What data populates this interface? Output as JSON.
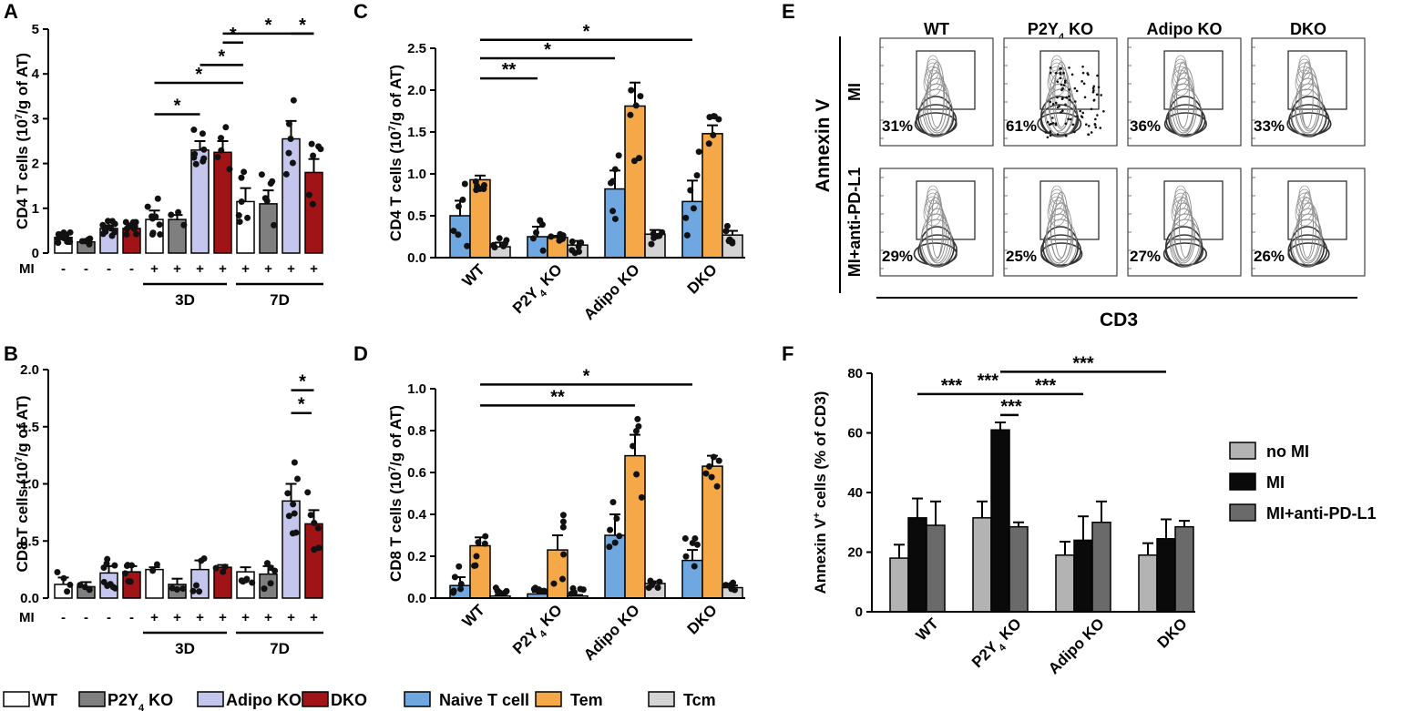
{
  "colors": {
    "WT": "#ffffff",
    "P2Y4 KO": "#7f7f7f",
    "Adipo KO": "#c5c6ee",
    "DKO": "#a01418",
    "Naive": "#6fa8e0",
    "Tem": "#f5a848",
    "Tcm": "#d4d4d4",
    "noMI": "#b3b3b3",
    "MI": "#0a0a0a",
    "MIPD": "#6a6a6a",
    "dots": "#111111"
  },
  "panels": {
    "A": "A",
    "B": "B",
    "C": "C",
    "D": "D",
    "E": "E",
    "F": "F"
  },
  "legend_AB": [
    "WT",
    "P2Y4 KO",
    "Adipo KO",
    "DKO"
  ],
  "legend_CD": [
    "Naive T cell",
    "Tem",
    "Tcm"
  ],
  "legend_F": [
    "no MI",
    "MI",
    "MI+anti-PD-L1"
  ],
  "chart_data": [
    {
      "id": "A",
      "type": "bar",
      "ylabel": "CD4 T cells (10^7/g of AT)",
      "ylim": [
        0,
        5
      ],
      "yticks": [
        "0",
        "1",
        "2",
        "3",
        "4",
        "5"
      ],
      "mi_label": "MI",
      "mi_signs": [
        "-",
        "-",
        "-",
        "-",
        "+",
        "+",
        "+",
        "+",
        "+",
        "+",
        "+",
        "+"
      ],
      "groups": [
        "3D",
        "7D"
      ],
      "bars": [
        {
          "genotype": "WT",
          "mi": "-",
          "value": 0.35,
          "err": 0.05
        },
        {
          "genotype": "P2Y4 KO",
          "mi": "-",
          "value": 0.25,
          "err": 0.03
        },
        {
          "genotype": "Adipo KO",
          "mi": "-",
          "value": 0.55,
          "err": 0.07
        },
        {
          "genotype": "DKO",
          "mi": "-",
          "value": 0.55,
          "err": 0.06
        },
        {
          "genotype": "WT",
          "mi": "+ 3D",
          "value": 0.75,
          "err": 0.2
        },
        {
          "genotype": "P2Y4 KO",
          "mi": "+ 3D",
          "value": 0.75,
          "err": 0.1
        },
        {
          "genotype": "Adipo KO",
          "mi": "+ 3D",
          "value": 2.3,
          "err": 0.2
        },
        {
          "genotype": "DKO",
          "mi": "+ 3D",
          "value": 2.25,
          "err": 0.25
        },
        {
          "genotype": "WT",
          "mi": "+ 7D",
          "value": 1.15,
          "err": 0.3
        },
        {
          "genotype": "P2Y4 KO",
          "mi": "+ 7D",
          "value": 1.1,
          "err": 0.3
        },
        {
          "genotype": "Adipo KO",
          "mi": "+ 7D",
          "value": 2.55,
          "err": 0.4
        },
        {
          "genotype": "DKO",
          "mi": "+ 7D",
          "value": 1.8,
          "err": 0.3
        }
      ],
      "significance": [
        "*",
        "*",
        "*",
        "*",
        "*",
        "*"
      ]
    },
    {
      "id": "B",
      "type": "bar",
      "ylabel": "CD8 T cells (10^7/g of AT)",
      "ylim": [
        0,
        2
      ],
      "yticks": [
        "0.0",
        "0.5",
        "1.0",
        "1.5",
        "2.0"
      ],
      "mi_label": "MI",
      "mi_signs": [
        "-",
        "-",
        "-",
        "-",
        "+",
        "+",
        "+",
        "+",
        "+",
        "+",
        "+",
        "+"
      ],
      "groups": [
        "3D",
        "7D"
      ],
      "bars": [
        {
          "genotype": "WT",
          "mi": "-",
          "value": 0.12,
          "err": 0.06
        },
        {
          "genotype": "P2Y4 KO",
          "mi": "-",
          "value": 0.1,
          "err": 0.04
        },
        {
          "genotype": "Adipo KO",
          "mi": "-",
          "value": 0.22,
          "err": 0.06
        },
        {
          "genotype": "DKO",
          "mi": "-",
          "value": 0.23,
          "err": 0.05
        },
        {
          "genotype": "WT",
          "mi": "+ 3D",
          "value": 0.25,
          "err": 0.02
        },
        {
          "genotype": "P2Y4 KO",
          "mi": "+ 3D",
          "value": 0.12,
          "err": 0.05
        },
        {
          "genotype": "Adipo KO",
          "mi": "+ 3D",
          "value": 0.25,
          "err": 0.08
        },
        {
          "genotype": "DKO",
          "mi": "+ 3D",
          "value": 0.27,
          "err": 0.02
        },
        {
          "genotype": "WT",
          "mi": "+ 7D",
          "value": 0.23,
          "err": 0.04
        },
        {
          "genotype": "P2Y4 KO",
          "mi": "+ 7D",
          "value": 0.21,
          "err": 0.07
        },
        {
          "genotype": "Adipo KO",
          "mi": "+ 7D",
          "value": 0.85,
          "err": 0.15
        },
        {
          "genotype": "DKO",
          "mi": "+ 7D",
          "value": 0.65,
          "err": 0.12
        }
      ],
      "significance": [
        "*",
        "*"
      ]
    },
    {
      "id": "C",
      "type": "bar",
      "ylabel": "CD4 T cells (10^7/g of AT)",
      "ylim": [
        0,
        2.5
      ],
      "yticks": [
        "0.0",
        "0.5",
        "1.0",
        "1.5",
        "2.0",
        "2.5"
      ],
      "categories": [
        "WT",
        "P2Y4 KO",
        "Adipo KO",
        "DKO"
      ],
      "series": [
        {
          "name": "Naive T cell",
          "values": [
            0.5,
            0.25,
            0.82,
            0.67
          ],
          "err": [
            0.18,
            0.12,
            0.22,
            0.25
          ]
        },
        {
          "name": "Tem",
          "values": [
            0.93,
            0.24,
            1.81,
            1.48
          ],
          "err": [
            0.05,
            0.02,
            0.28,
            0.1
          ]
        },
        {
          "name": "Tcm",
          "values": [
            0.13,
            0.15,
            0.28,
            0.27
          ],
          "err": [
            0.05,
            0.05,
            0.05,
            0.05
          ]
        }
      ],
      "significance": [
        "*",
        "*",
        "**"
      ]
    },
    {
      "id": "D",
      "type": "bar",
      "ylabel": "CD8 T cells (10^7/g of AT)",
      "ylim": [
        0,
        1
      ],
      "yticks": [
        "0.0",
        "0.2",
        "0.4",
        "0.6",
        "0.8",
        "1.0"
      ],
      "categories": [
        "WT",
        "P2Y4 KO",
        "Adipo KO",
        "DKO"
      ],
      "series": [
        {
          "name": "Naive T cell",
          "values": [
            0.06,
            0.02,
            0.3,
            0.18
          ],
          "err": [
            0.04,
            0.01,
            0.1,
            0.05
          ]
        },
        {
          "name": "Tem",
          "values": [
            0.25,
            0.23,
            0.68,
            0.63
          ],
          "err": [
            0.04,
            0.07,
            0.1,
            0.05
          ]
        },
        {
          "name": "Tcm",
          "values": [
            0.01,
            0.01,
            0.07,
            0.05
          ],
          "err": [
            0.005,
            0.005,
            0.01,
            0.01
          ]
        }
      ],
      "significance": [
        "*",
        "**"
      ]
    },
    {
      "id": "F",
      "type": "bar",
      "ylabel": "Annexin V+ cells (% of CD3)",
      "ylim": [
        0,
        80
      ],
      "yticks": [
        "0",
        "20",
        "40",
        "60",
        "80"
      ],
      "categories": [
        "WT",
        "P2Y4 KO",
        "Adipo KO",
        "DKO"
      ],
      "series": [
        {
          "name": "no MI",
          "values": [
            18,
            31.5,
            19,
            19
          ],
          "err": [
            4.5,
            5.5,
            4.5,
            4
          ]
        },
        {
          "name": "MI",
          "values": [
            31.5,
            61,
            24,
            24.5
          ],
          "err": [
            6.5,
            2.5,
            8,
            6.5
          ]
        },
        {
          "name": "MI+anti-PD-L1",
          "values": [
            29,
            28.5,
            30,
            28.5
          ],
          "err": [
            8,
            1.5,
            7,
            2
          ]
        }
      ],
      "significance": [
        "***",
        "***",
        "***",
        "***"
      ]
    }
  ],
  "flow": {
    "columns": [
      "WT",
      "P2Y4 KO",
      "Adipo KO",
      "DKO"
    ],
    "rows": [
      "MI",
      "MI+anti-PD-L1"
    ],
    "ylabel": "Annexin V",
    "xlabel": "CD3",
    "percent_MI": [
      "31%",
      "61%",
      "36%",
      "33%"
    ],
    "percent_PD": [
      "29%",
      "25%",
      "27%",
      "26%"
    ]
  }
}
